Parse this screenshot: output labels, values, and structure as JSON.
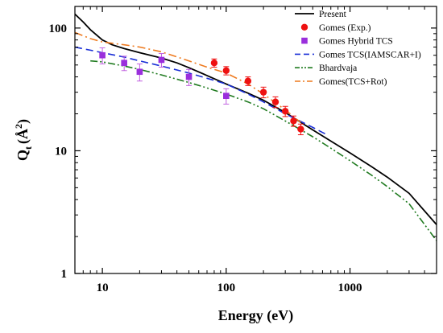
{
  "chart_data": {
    "type": "line",
    "xlabel": "Energy (eV)",
    "ylabel": "Q_t (Å²)",
    "ylabel_parts": {
      "main": "Q",
      "sub": "t",
      "open": "(",
      "unit": "Å",
      "sup": "2",
      "close": ")"
    },
    "xscale": "log",
    "yscale": "log",
    "xlim": [
      6,
      5000
    ],
    "ylim": [
      1,
      150
    ],
    "xticks": [
      10,
      100,
      1000
    ],
    "xtick_labels": [
      "10",
      "100",
      "1000"
    ],
    "yticks": [
      1,
      10,
      100
    ],
    "ytick_labels": [
      "1",
      "10",
      "100"
    ],
    "grid": false,
    "legend_position": "top-right",
    "series": [
      {
        "name": "Present",
        "kind": "line",
        "style": "solid",
        "color": "#000000",
        "x": [
          6,
          7,
          8,
          10,
          12,
          15,
          20,
          30,
          40,
          50,
          70,
          100,
          150,
          200,
          300,
          500,
          700,
          1000,
          1500,
          2000,
          3000,
          5000
        ],
        "y": [
          130,
          112,
          97,
          80,
          73,
          68,
          63,
          57,
          52,
          47.5,
          41,
          35,
          29.5,
          25.8,
          20.5,
          14.8,
          12,
          9.6,
          7.4,
          6.1,
          4.5,
          2.5
        ]
      },
      {
        "name": "Gomes (Exp.)",
        "kind": "points",
        "marker": "circle",
        "color": "#ee1111",
        "errbar_color": "#ee1111",
        "x": [
          80,
          100,
          150,
          200,
          250,
          300,
          350,
          400
        ],
        "y": [
          52,
          45,
          37,
          30,
          25,
          21,
          17.5,
          15
        ],
        "err": [
          4,
          3.5,
          3,
          3,
          2.5,
          2,
          1.7,
          1.5
        ]
      },
      {
        "name": "Gomes Hybrid TCS",
        "kind": "points",
        "marker": "square",
        "color": "#9a2fdc",
        "errbar_color": "#c060e0",
        "x": [
          10,
          15,
          20,
          30,
          50,
          100
        ],
        "y": [
          60,
          52,
          44,
          55,
          40,
          28
        ],
        "err": [
          9,
          7,
          7,
          7,
          6,
          4
        ]
      },
      {
        "name": "Gomes TCS(IAMSCAR+I)",
        "kind": "line",
        "style": "dash",
        "color": "#1a2fd6",
        "x": [
          6,
          8,
          10,
          15,
          20,
          30,
          50,
          70,
          100,
          150,
          200,
          300,
          500,
          650
        ],
        "y": [
          70,
          66,
          63,
          58,
          54,
          49,
          43,
          39,
          35,
          29,
          25,
          20,
          15.5,
          13.5
        ]
      },
      {
        "name": "Bhardvaja",
        "kind": "line",
        "style": "dashdotdot",
        "color": "#1f7a1f",
        "x": [
          8,
          10,
          15,
          20,
          30,
          50,
          70,
          100,
          150,
          200,
          300,
          500,
          700,
          1000,
          1500,
          2000,
          3000,
          5000
        ],
        "y": [
          54,
          53,
          49,
          46,
          41.5,
          36,
          32.5,
          29,
          25,
          22,
          17.5,
          13,
          10.5,
          8.3,
          6.3,
          5.1,
          3.7,
          1.85
        ]
      },
      {
        "name": "Gomes(TCS+Rot)",
        "kind": "line",
        "style": "dashdot",
        "color": "#ee7a1f",
        "x": [
          6,
          8,
          10,
          15,
          20,
          30,
          50,
          70,
          100,
          150,
          200,
          300,
          400
        ],
        "y": [
          92,
          82,
          77,
          73,
          70,
          64,
          54,
          48,
          43,
          35,
          29,
          21.5,
          17
        ]
      }
    ]
  }
}
